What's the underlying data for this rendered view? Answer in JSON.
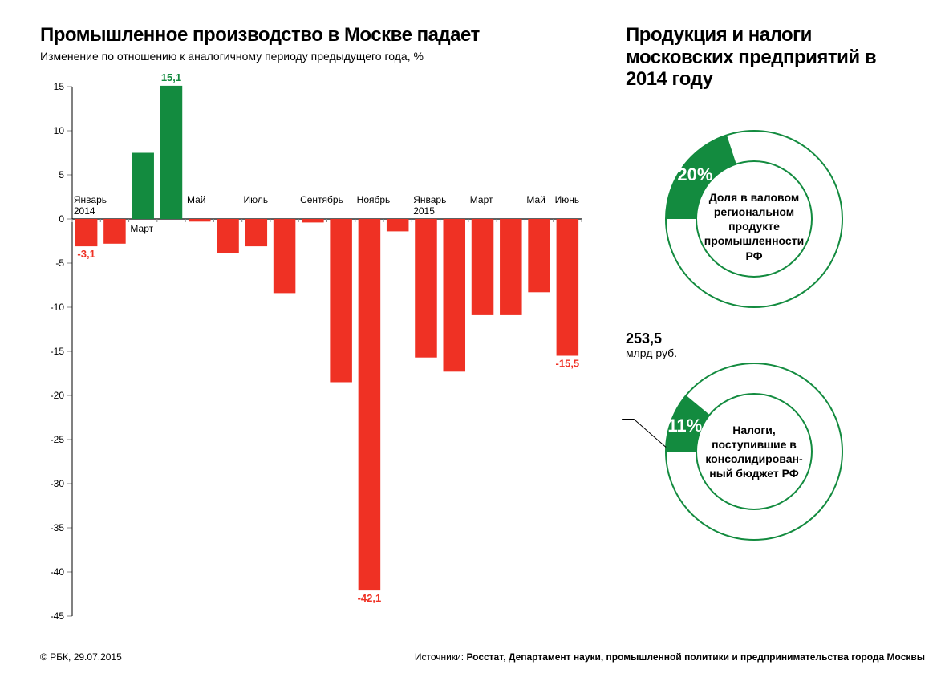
{
  "left": {
    "title": "Промышленное производство в Москве падает",
    "subtitle": "Изменение по отношению к аналогичному периоду предыдущего года, %",
    "chart": {
      "type": "bar",
      "ylim": [
        -45,
        15
      ],
      "ytick_step": 5,
      "yticks": [
        15,
        10,
        5,
        0,
        -5,
        -10,
        -15,
        -20,
        -25,
        -30,
        -35,
        -40,
        -45
      ],
      "zero_line_color": "#000000",
      "axis_color": "#000000",
      "tick_color": "#888888",
      "positive_color": "#138b3f",
      "negative_color": "#ef3124",
      "label_color_pos": "#138b3f",
      "label_color_neg": "#ef3124",
      "background": "#ffffff",
      "bar_width": 0.78,
      "bars": [
        {
          "i": 0,
          "value": -3.1,
          "label": "-3,1",
          "month": "Январь",
          "year": "2014"
        },
        {
          "i": 1,
          "value": -2.8,
          "month": ""
        },
        {
          "i": 2,
          "value": 7.5,
          "month": "Март"
        },
        {
          "i": 3,
          "value": 15.1,
          "label": "15,1",
          "month": ""
        },
        {
          "i": 4,
          "value": -0.3,
          "month": "Май"
        },
        {
          "i": 5,
          "value": -3.9,
          "month": ""
        },
        {
          "i": 6,
          "value": -3.1,
          "month": "Июль"
        },
        {
          "i": 7,
          "value": -8.4,
          "month": ""
        },
        {
          "i": 8,
          "value": -0.4,
          "month": "Сентябрь"
        },
        {
          "i": 9,
          "value": -18.5,
          "month": ""
        },
        {
          "i": 10,
          "value": -42.1,
          "label": "-42,1",
          "month": "Ноябрь"
        },
        {
          "i": 11,
          "value": -1.4,
          "month": ""
        },
        {
          "i": 12,
          "value": -15.7,
          "month": "Январь",
          "year": "2015"
        },
        {
          "i": 13,
          "value": -17.3,
          "month": ""
        },
        {
          "i": 14,
          "value": -10.9,
          "month": "Март"
        },
        {
          "i": 15,
          "value": -10.9,
          "month": ""
        },
        {
          "i": 16,
          "value": -8.3,
          "month": "Май"
        },
        {
          "i": 17,
          "value": -15.5,
          "label": "-15,5",
          "month": "Июнь"
        }
      ],
      "title_fontsize": 24,
      "subtitle_fontsize": 14,
      "axis_fontsize": 12,
      "label_fontsize": 13
    }
  },
  "right": {
    "title": "Продукция и налоги московских предприятий в 2014 году",
    "donut1": {
      "type": "donut",
      "percent": 20,
      "percent_label": "20%",
      "fill_color": "#138b3f",
      "ring_color": "#138b3f",
      "ring_width": 2,
      "fill_width": 38,
      "start_angle": 180,
      "desc": "Доля в валовом региональном продукте промышленности РФ"
    },
    "donut2": {
      "type": "donut",
      "percent": 11,
      "percent_label": "11%",
      "fill_color": "#138b3f",
      "ring_color": "#138b3f",
      "ring_width": 2,
      "fill_width": 38,
      "start_angle": 180,
      "callout_value": "253,5",
      "callout_unit": "млрд руб.",
      "desc": "Налоги, поступившие в консолидирован­ный бюджет РФ"
    }
  },
  "footer": {
    "copyright": "© РБК, 29.07.2015",
    "sources_label": "Источники:",
    "sources": "Росстат, Департамент науки, промышленной политики и предпринимательства города Москвы"
  }
}
